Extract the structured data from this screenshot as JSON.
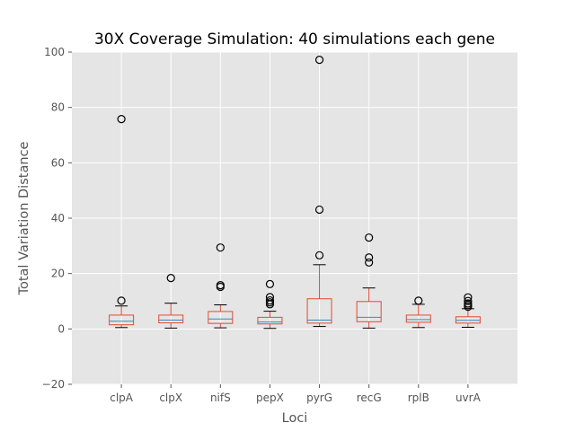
{
  "chart_data": {
    "type": "boxplot",
    "title": "30X Coverage Simulation: 40 simulations each gene",
    "xlabel": "Loci",
    "ylabel": "Total Variation Distance",
    "ylim": [
      -20,
      100
    ],
    "yticks": [
      -20,
      0,
      20,
      40,
      60,
      80,
      100
    ],
    "grid": true,
    "style": "ggplot",
    "colors": {
      "plot_background": "#e5e5e5",
      "grid": "#ffffff",
      "box": "#e24a33",
      "median": "#348abd",
      "whisker": "#e24a33",
      "cap": "#000000",
      "flier": "#000000"
    },
    "categories": [
      "clpA",
      "clpX",
      "nifS",
      "pepX",
      "pyrG",
      "recG",
      "rplB",
      "uvrA"
    ],
    "boxes": [
      {
        "name": "clpA",
        "whislo": 0.5,
        "q1": 1.5,
        "med": 2.8,
        "q3": 5.0,
        "whishi": 8.3,
        "fliers": [
          10.2,
          75.8
        ]
      },
      {
        "name": "clpX",
        "whislo": 0.3,
        "q1": 2.2,
        "med": 3.2,
        "q3": 5.0,
        "whishi": 9.3,
        "fliers": [
          18.4
        ]
      },
      {
        "name": "nifS",
        "whislo": 0.4,
        "q1": 2.0,
        "med": 3.6,
        "q3": 6.3,
        "whishi": 8.7,
        "fliers": [
          15.2,
          15.8,
          29.4
        ]
      },
      {
        "name": "pepX",
        "whislo": 0.2,
        "q1": 1.8,
        "med": 2.5,
        "q3": 4.2,
        "whishi": 6.4,
        "fliers": [
          8.9,
          9.6,
          10.3,
          11.5,
          16.2
        ]
      },
      {
        "name": "pyrG",
        "whislo": 0.9,
        "q1": 2.1,
        "med": 3.2,
        "q3": 10.9,
        "whishi": 23.2,
        "fliers": [
          26.6,
          43.1,
          97.2
        ]
      },
      {
        "name": "recG",
        "whislo": 0.3,
        "q1": 2.6,
        "med": 4.2,
        "q3": 9.9,
        "whishi": 14.8,
        "fliers": [
          24.0,
          25.8,
          33.0
        ]
      },
      {
        "name": "rplB",
        "whislo": 0.5,
        "q1": 2.4,
        "med": 3.4,
        "q3": 5.0,
        "whishi": 8.9,
        "fliers": [
          10.2
        ]
      },
      {
        "name": "uvrA",
        "whislo": 0.6,
        "q1": 2.1,
        "med": 3.1,
        "q3": 4.4,
        "whishi": 7.3,
        "fliers": [
          8.0,
          8.6,
          9.2,
          10.1,
          11.4
        ]
      }
    ]
  }
}
